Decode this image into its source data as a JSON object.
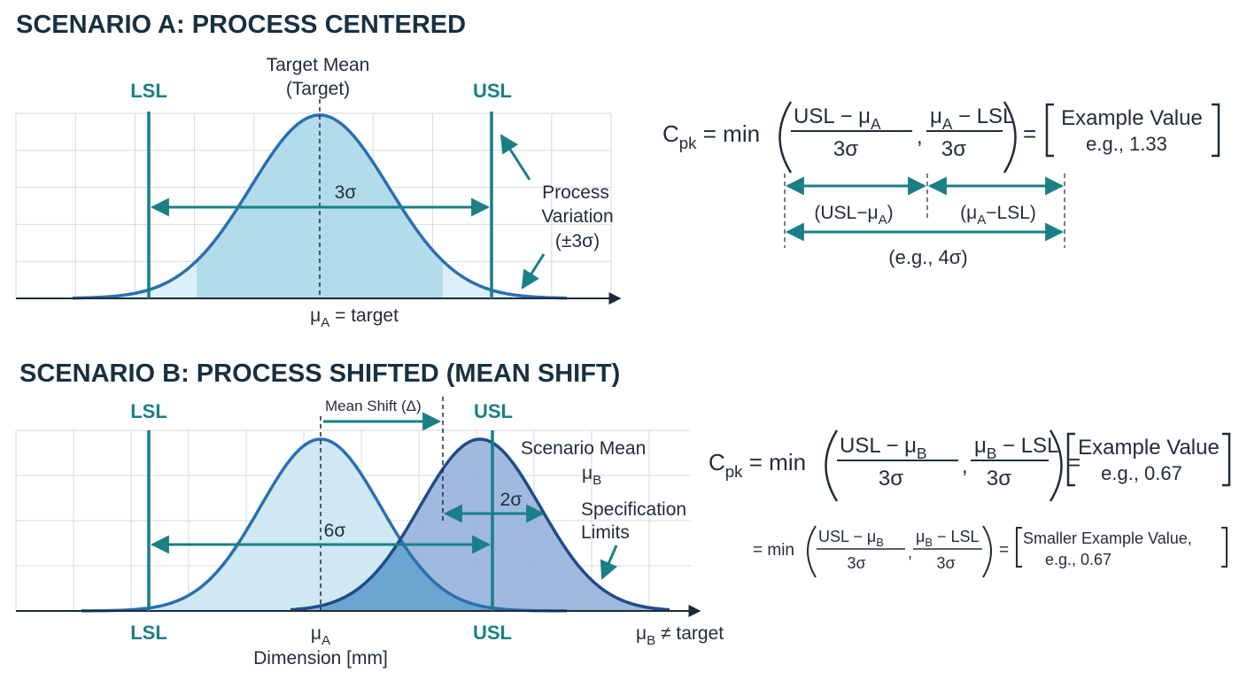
{
  "scenario_a": {
    "title": "SCENARIO A: PROCESS CENTERED",
    "lsl_label": "LSL",
    "usl_label": "USL",
    "target_label_line1": "Target Mean",
    "target_label_line2": "(Target)",
    "sigma_span_label": "3σ",
    "process_variation_line1": "Process",
    "process_variation_line2": "Variation",
    "process_variation_line3": "(±3σ)",
    "mean_label_sym": "μ",
    "mean_label_sub": "A",
    "mean_label_rest": " = target"
  },
  "formula_a": {
    "lhs_c": "C",
    "lhs_sub": "pk",
    "eq_min": " = min",
    "num1_pre": "USL − μ",
    "num1_sub": "A",
    "num2_pre": "μ",
    "num2_sub": "A",
    "num2_post": " − LSL",
    "denom": "3σ",
    "comma": ",",
    "equals": "=",
    "result_line1": "Example Value",
    "result_line2": "e.g., 1.33",
    "span1_pre": "(USL−μ",
    "span1_sub": "A",
    "span1_post": ")",
    "span2_pre": "(μ",
    "span2_sub": "A",
    "span2_post": "−LSL)",
    "total_label": "(e.g., 4σ)"
  },
  "scenario_b": {
    "title": "SCENARIO B: PROCESS SHIFTED (MEAN SHIFT)",
    "lsl_top": "LSL",
    "usl_top": "USL",
    "mean_shift_label": "Mean Shift (Δ)",
    "scenario_mean_line1": "Scenario Mean",
    "scenario_mean_sym": "μ",
    "scenario_mean_sub": "B",
    "two_sigma_label": "2σ",
    "six_sigma_label": "6σ",
    "spec_limits_line1": "Specification",
    "spec_limits_line2": "Limits",
    "lsl_bottom": "LSL",
    "mu_a_sym": "μ",
    "mu_a_sub": "A",
    "usl_bottom": "USL",
    "mu_b_sym": "μ",
    "mu_b_sub": "B",
    "mu_b_rest": " ≠ target",
    "x_axis_label": "Dimension [mm]"
  },
  "formula_b": {
    "lhs_c": "C",
    "lhs_sub": "pk",
    "eq_min": " = min",
    "num1_pre": "USL − μ",
    "num1_sub": "B",
    "num2_pre": "μ",
    "num2_sub": "B",
    "num2_post": " − LSL",
    "denom": "3σ",
    "comma": ",",
    "equals": "=",
    "result_line1": "Example Value",
    "result_line2": "e.g., 0.67"
  },
  "formula_b2": {
    "eq_min": "= min",
    "num1_pre": "USL − μ",
    "num1_sub": "B",
    "num2_pre": "μ",
    "num2_sub": "B",
    "num2_post": " − LSL",
    "denom": "3σ",
    "comma": ",",
    "equals": "=",
    "result_line1": "Smaller Example Value,",
    "result_line2": "e.g., 0.67"
  },
  "colors": {
    "teal": "#1a7f86",
    "navy": "#173042",
    "curve_a": "#2a6fb0",
    "fill_a": "#bfe1ef",
    "curve_b": "#1e4c8a",
    "fill_b": "#8eaed8"
  }
}
